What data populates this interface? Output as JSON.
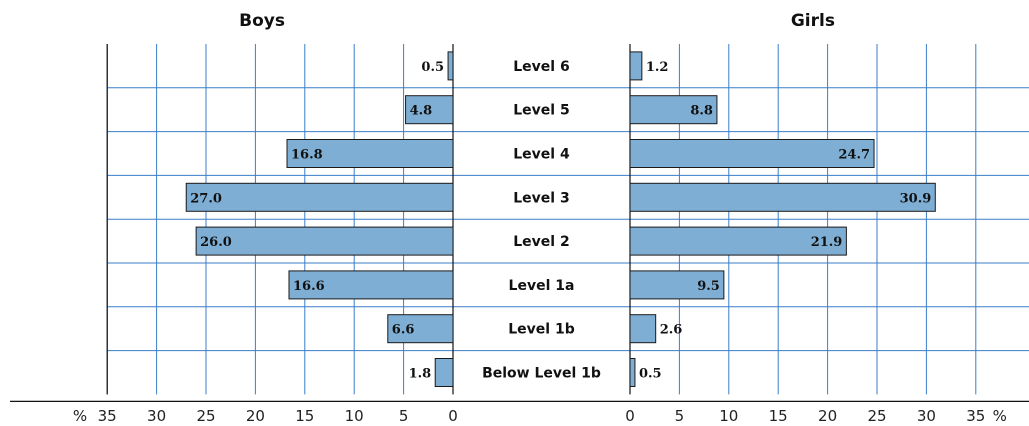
{
  "chart_data": {
    "type": "bar",
    "orientation": "horizontal",
    "layout": "back-to-back",
    "categories": [
      "Level 6",
      "Level 5",
      "Level 4",
      "Level 3",
      "Level 2",
      "Level 1a",
      "Level 1b",
      "Below Level 1b"
    ],
    "series": [
      {
        "name": "Boys",
        "values": [
          0.5,
          4.8,
          16.8,
          27.0,
          26.0,
          16.6,
          6.6,
          1.8
        ]
      },
      {
        "name": "Girls",
        "values": [
          1.2,
          8.8,
          24.7,
          30.9,
          21.9,
          9.5,
          2.6,
          0.5
        ]
      }
    ],
    "value_labels": {
      "Boys": [
        "0.5",
        "4.8",
        "16.8",
        "27.0",
        "26.0",
        "16.6",
        "6.6",
        "1.8"
      ],
      "Girls": [
        "1.2",
        "8.8",
        "24.7",
        "30.9",
        "21.9",
        "9.5",
        "2.6",
        "0.5"
      ]
    },
    "xlim": [
      0,
      35
    ],
    "ticks": [
      "0",
      "5",
      "10",
      "15",
      "20",
      "25",
      "30",
      "35"
    ],
    "unit": "%",
    "grid": true,
    "colors": {
      "bar_fill": "#7eaed3",
      "bar_stroke": "#1a1a1a",
      "grid": "#3a7ec8",
      "frame": "#111111"
    }
  }
}
